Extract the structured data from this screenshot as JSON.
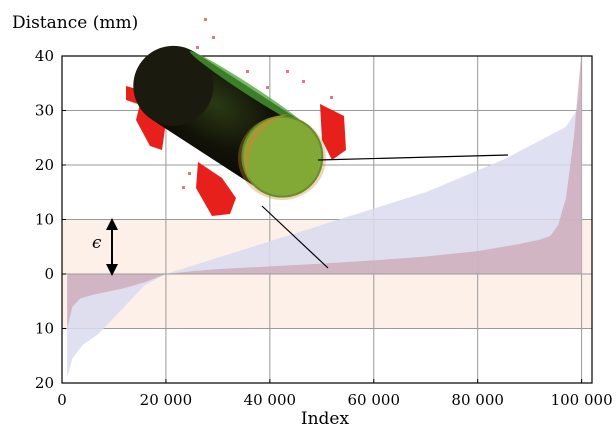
{
  "chart_data": {
    "type": "area",
    "title": "",
    "ylabel": "Distance (mm)",
    "xlabel": "Index",
    "xlim": [
      0,
      102000
    ],
    "ylim": [
      -20,
      40
    ],
    "x_ticks": [
      0,
      20000,
      40000,
      60000,
      80000,
      100000
    ],
    "x_tick_labels": [
      "0",
      "20 000",
      "40 000",
      "60 000",
      "80 000",
      "100 000"
    ],
    "y_ticks": [
      40,
      30,
      20,
      10,
      0,
      -10,
      -20
    ],
    "y_tick_labels": [
      "40",
      "30",
      "20",
      "10",
      "0",
      "10",
      "20"
    ],
    "grid": true,
    "band": {
      "label": "ϵ",
      "range": [
        -10,
        10
      ],
      "color": "#fdf0e8",
      "border": "dashed"
    },
    "series": [
      {
        "color": "#d9daf0",
        "x": [
          1000,
          2000,
          4000,
          7000,
          10000,
          13000,
          16000,
          20000,
          25000,
          30000,
          35000,
          40000,
          45000,
          50000,
          55000,
          60000,
          65000,
          70000,
          75000,
          80000,
          85000,
          88000,
          91000,
          93000,
          95000,
          97000,
          99000,
          100000
        ],
        "y": [
          -19,
          -15.5,
          -13,
          -11,
          -8,
          -5,
          -2,
          0,
          1.5,
          3,
          4.5,
          6,
          7.5,
          9,
          10.5,
          12,
          13.5,
          15,
          17,
          19,
          21,
          22.5,
          24,
          25,
          26,
          27,
          30,
          35
        ]
      },
      {
        "color": "#cdaab8",
        "x": [
          1000,
          2000,
          3500,
          6000,
          9000,
          12000,
          16000,
          20000,
          25000,
          30000,
          40000,
          50000,
          60000,
          70000,
          80000,
          88000,
          92000,
          94000,
          95500,
          97000,
          98500,
          100000
        ],
        "y": [
          -10,
          -6,
          -4.5,
          -3.8,
          -3.2,
          -2.6,
          -1.5,
          0,
          0.5,
          0.9,
          1.4,
          1.9,
          2.5,
          3.2,
          4.2,
          5.5,
          6.3,
          7,
          9,
          14,
          25,
          41
        ]
      }
    ]
  },
  "inset": {
    "name": "reconstructed-cylinder-pointcloud",
    "colors": {
      "body": "#1a1a0e",
      "rim": "#4aa234",
      "face": "#5cb83a",
      "face_overlay": "#c98a32",
      "outlier": "#e8201c",
      "speck": "#dc7a86"
    }
  }
}
